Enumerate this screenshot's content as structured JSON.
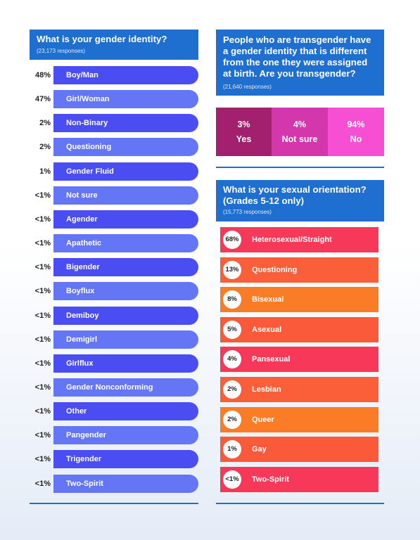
{
  "gender": {
    "title": "What is your gender identity?",
    "responses": "(23,173 responses)",
    "colors": [
      "#4a4df2",
      "#6476f5"
    ],
    "items": [
      {
        "pct": "48%",
        "label": "Boy/Man"
      },
      {
        "pct": "47%",
        "label": "Girl/Woman"
      },
      {
        "pct": "2%",
        "label": "Non-Binary"
      },
      {
        "pct": "2%",
        "label": "Questioning"
      },
      {
        "pct": "1%",
        "label": "Gender Fluid"
      },
      {
        "pct": "<1%",
        "label": "Not sure"
      },
      {
        "pct": "<1%",
        "label": "Agender"
      },
      {
        "pct": "<1%",
        "label": "Apathetic"
      },
      {
        "pct": "<1%",
        "label": "Bigender"
      },
      {
        "pct": "<1%",
        "label": "Boyflux"
      },
      {
        "pct": "<1%",
        "label": "Demiboy"
      },
      {
        "pct": "<1%",
        "label": "Demigirl"
      },
      {
        "pct": "<1%",
        "label": "Girlflux"
      },
      {
        "pct": "<1%",
        "label": "Gender Nonconforming"
      },
      {
        "pct": "<1%",
        "label": "Other"
      },
      {
        "pct": "<1%",
        "label": "Pangender"
      },
      {
        "pct": "<1%",
        "label": "Trigender"
      },
      {
        "pct": "<1%",
        "label": "Two-Spirit"
      }
    ]
  },
  "transgender": {
    "title": "People who are transgender have a gender identity that is different from the one they were assigned at birth. Are you transgender?",
    "responses": "(21,640 responses)",
    "items": [
      {
        "pct": "3%",
        "label": "Yes",
        "color": "#a3206e"
      },
      {
        "pct": "4%",
        "label": "Not sure",
        "color": "#d436ab"
      },
      {
        "pct": "94%",
        "label": "No",
        "color": "#f74fd4"
      }
    ]
  },
  "orientation": {
    "title": "What is your sexual orientation? (Grades 5-12 only)",
    "responses": "(15,773 responses)",
    "items": [
      {
        "pct": "68%",
        "label": "Heterosexual/Straight",
        "color": "#f73859"
      },
      {
        "pct": "13%",
        "label": "Questioning",
        "color": "#fb5f3a"
      },
      {
        "pct": "8%",
        "label": "Bisexual",
        "color": "#fb7c26"
      },
      {
        "pct": "5%",
        "label": "Asexual",
        "color": "#fb5a3a"
      },
      {
        "pct": "4%",
        "label": "Pansexual",
        "color": "#f73859"
      },
      {
        "pct": "2%",
        "label": "Lesbian",
        "color": "#fb5f3a"
      },
      {
        "pct": "2%",
        "label": "Queer",
        "color": "#fb7c26"
      },
      {
        "pct": "1%",
        "label": "Gay",
        "color": "#fb5a3a"
      },
      {
        "pct": "<1%",
        "label": "Two-Spirit",
        "color": "#f73859"
      }
    ]
  },
  "chart_data": [
    {
      "type": "bar",
      "title": "What is your gender identity?",
      "subtitle": "(23,173 responses)",
      "categories": [
        "Boy/Man",
        "Girl/Woman",
        "Non-Binary",
        "Questioning",
        "Gender Fluid",
        "Not sure",
        "Agender",
        "Apathetic",
        "Bigender",
        "Boyflux",
        "Demiboy",
        "Demigirl",
        "Girlflux",
        "Gender Nonconforming",
        "Other",
        "Pangender",
        "Trigender",
        "Two-Spirit"
      ],
      "values": [
        "48%",
        "47%",
        "2%",
        "2%",
        "1%",
        "<1%",
        "<1%",
        "<1%",
        "<1%",
        "<1%",
        "<1%",
        "<1%",
        "<1%",
        "<1%",
        "<1%",
        "<1%",
        "<1%",
        "<1%"
      ]
    },
    {
      "type": "table",
      "title": "People who are transgender have a gender identity that is different from the one they were assigned at birth. Are you transgender?",
      "subtitle": "(21,640 responses)",
      "categories": [
        "Yes",
        "Not sure",
        "No"
      ],
      "values": [
        "3%",
        "4%",
        "94%"
      ]
    },
    {
      "type": "bar",
      "title": "What is your sexual orientation? (Grades 5-12 only)",
      "subtitle": "(15,773 responses)",
      "categories": [
        "Heterosexual/Straight",
        "Questioning",
        "Bisexual",
        "Asexual",
        "Pansexual",
        "Lesbian",
        "Queer",
        "Gay",
        "Two-Spirit"
      ],
      "values": [
        "68%",
        "13%",
        "8%",
        "5%",
        "4%",
        "2%",
        "2%",
        "1%",
        "<1%"
      ]
    }
  ]
}
